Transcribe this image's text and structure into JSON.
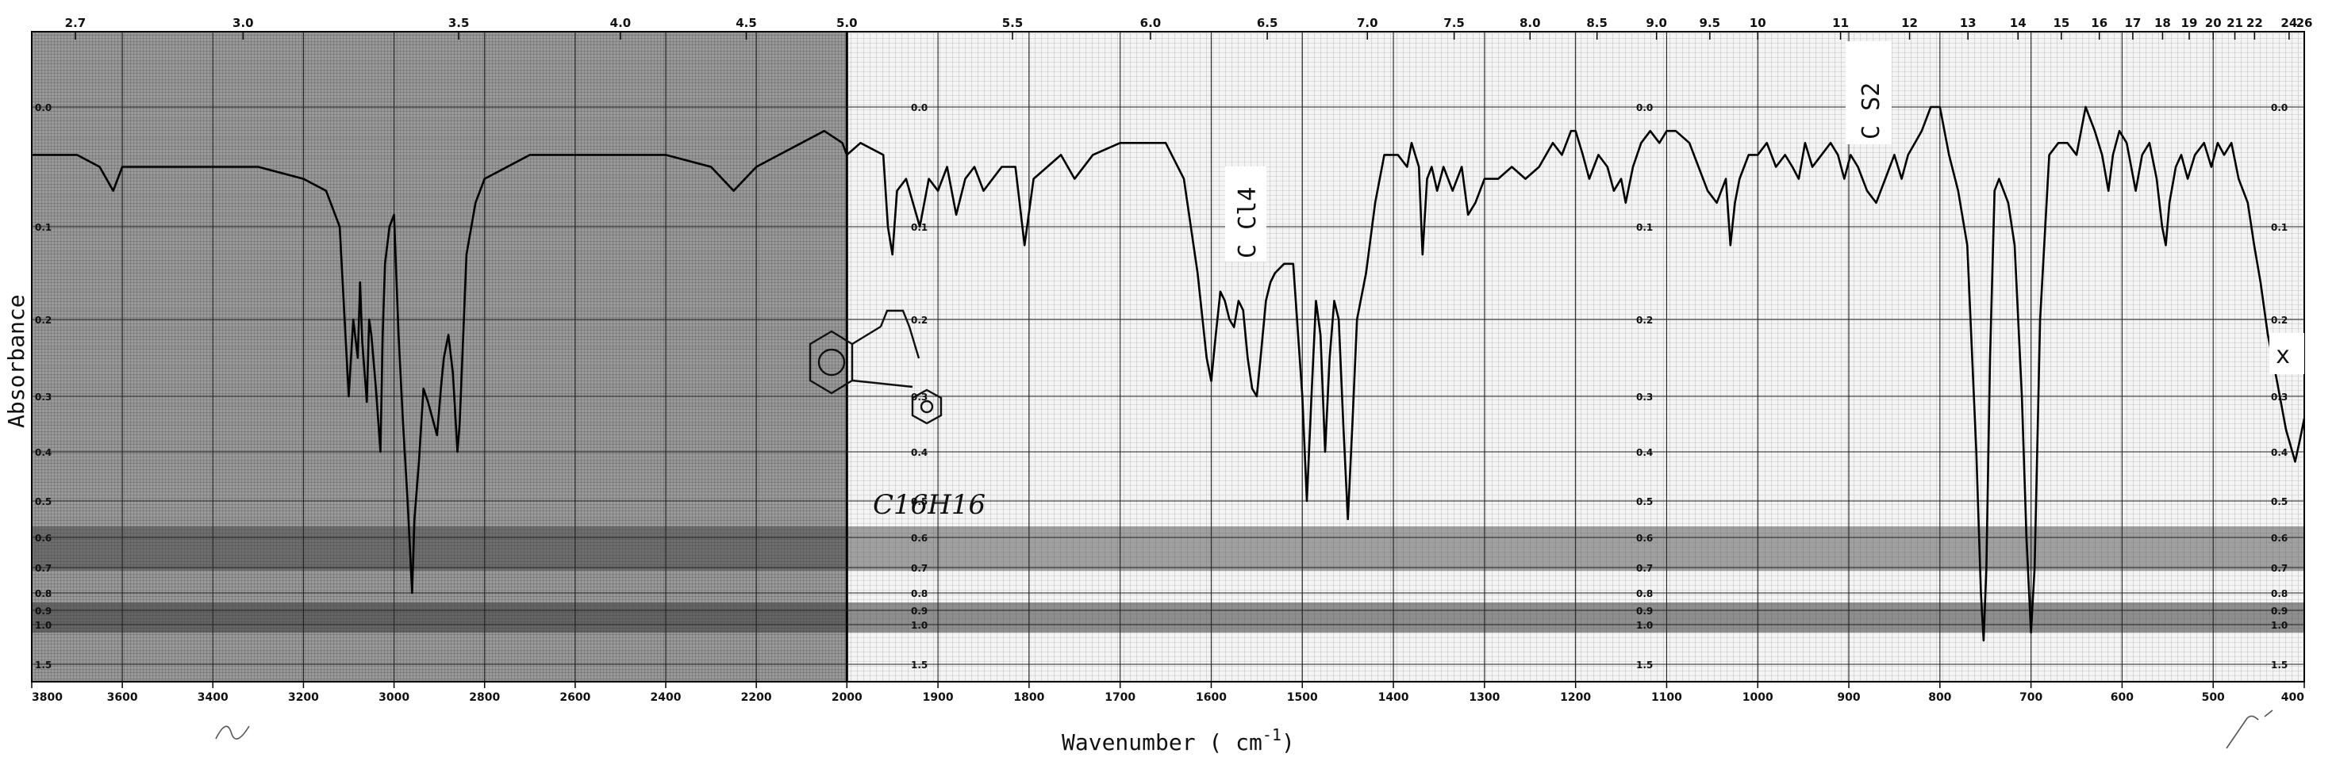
{
  "chart_data": {
    "type": "line",
    "title": "",
    "xlabel": "Wavenumber ( cm-1)",
    "xlabel_parts": {
      "main": "Wavenumber ( cm",
      "sup": "-1",
      "close": ")"
    },
    "ylabel": "Absorbance",
    "x_axis_note": "wavenumber decreases left to right; scale changes at 2000 cm-1",
    "xlim": [
      3800,
      400
    ],
    "ylim": [
      0.0,
      1.5
    ],
    "grid": true,
    "bottom_ticks": [
      "3800",
      "3600",
      "3400",
      "3200",
      "3000",
      "2800",
      "2600",
      "2400",
      "2200",
      "2000",
      "1900",
      "1800",
      "1700",
      "1600",
      "1500",
      "1400",
      "1300",
      "1200",
      "1100",
      "1000",
      "900",
      "800",
      "700",
      "600",
      "500",
      "400"
    ],
    "top_ticks_micron": [
      "2.7",
      "3.0",
      "3.5",
      "4.0",
      "4.5",
      "5.0",
      "5.5",
      "6.0",
      "6.5",
      "7.0",
      "7.5",
      "8.0",
      "8.5",
      "9.0",
      "9.5",
      "10",
      "11",
      "12",
      "13",
      "14",
      "15",
      "16",
      "17",
      "18",
      "19",
      "20",
      "21",
      "22",
      "24",
      "26"
    ],
    "absorbance_ticks": [
      "0.0",
      "0.1",
      "0.2",
      "0.3",
      "0.4",
      "0.5",
      "0.6",
      "0.7",
      "0.8",
      "0.9",
      "1.0",
      "1.5"
    ],
    "annotations": {
      "ccl4": "C Cl4",
      "cs2": "C S2",
      "formula": "C16H16",
      "marker": "x"
    },
    "series": [
      {
        "points": [
          [
            3800,
            0.04
          ],
          [
            3700,
            0.04
          ],
          [
            3650,
            0.05
          ],
          [
            3620,
            0.07
          ],
          [
            3600,
            0.05
          ],
          [
            3500,
            0.05
          ],
          [
            3300,
            0.05
          ],
          [
            3200,
            0.06
          ],
          [
            3150,
            0.07
          ],
          [
            3120,
            0.1
          ],
          [
            3100,
            0.3
          ],
          [
            3090,
            0.2
          ],
          [
            3080,
            0.25
          ],
          [
            3075,
            0.16
          ],
          [
            3070,
            0.23
          ],
          [
            3060,
            0.31
          ],
          [
            3055,
            0.2
          ],
          [
            3050,
            0.22
          ],
          [
            3040,
            0.29
          ],
          [
            3030,
            0.4
          ],
          [
            3025,
            0.22
          ],
          [
            3020,
            0.14
          ],
          [
            3010,
            0.1
          ],
          [
            3000,
            0.09
          ],
          [
            2990,
            0.22
          ],
          [
            2980,
            0.35
          ],
          [
            2970,
            0.5
          ],
          [
            2960,
            0.8
          ],
          [
            2955,
            0.55
          ],
          [
            2945,
            0.42
          ],
          [
            2935,
            0.29
          ],
          [
            2925,
            0.31
          ],
          [
            2915,
            0.34
          ],
          [
            2905,
            0.37
          ],
          [
            2895,
            0.28
          ],
          [
            2890,
            0.25
          ],
          [
            2880,
            0.22
          ],
          [
            2870,
            0.27
          ],
          [
            2860,
            0.4
          ],
          [
            2855,
            0.35
          ],
          [
            2840,
            0.13
          ],
          [
            2820,
            0.08
          ],
          [
            2800,
            0.06
          ],
          [
            2700,
            0.04
          ],
          [
            2600,
            0.04
          ],
          [
            2500,
            0.04
          ],
          [
            2400,
            0.04
          ],
          [
            2300,
            0.05
          ],
          [
            2250,
            0.07
          ],
          [
            2200,
            0.05
          ],
          [
            2150,
            0.04
          ],
          [
            2100,
            0.03
          ],
          [
            2050,
            0.02
          ],
          [
            2010,
            0.03
          ],
          [
            2000,
            0.04
          ],
          [
            1985,
            0.03
          ],
          [
            1960,
            0.04
          ],
          [
            1955,
            0.1
          ],
          [
            1950,
            0.13
          ],
          [
            1945,
            0.07
          ],
          [
            1935,
            0.06
          ],
          [
            1920,
            0.1
          ],
          [
            1910,
            0.06
          ],
          [
            1900,
            0.07
          ],
          [
            1890,
            0.05
          ],
          [
            1880,
            0.09
          ],
          [
            1870,
            0.06
          ],
          [
            1860,
            0.05
          ],
          [
            1850,
            0.07
          ],
          [
            1830,
            0.05
          ],
          [
            1815,
            0.05
          ],
          [
            1805,
            0.12
          ],
          [
            1795,
            0.06
          ],
          [
            1780,
            0.05
          ],
          [
            1765,
            0.04
          ],
          [
            1750,
            0.06
          ],
          [
            1730,
            0.04
          ],
          [
            1700,
            0.03
          ],
          [
            1650,
            0.03
          ],
          [
            1630,
            0.06
          ],
          [
            1615,
            0.15
          ],
          [
            1605,
            0.25
          ],
          [
            1600,
            0.28
          ],
          [
            1595,
            0.22
          ],
          [
            1590,
            0.17
          ],
          [
            1585,
            0.18
          ],
          [
            1580,
            0.2
          ],
          [
            1575,
            0.21
          ],
          [
            1570,
            0.18
          ],
          [
            1565,
            0.19
          ],
          [
            1560,
            0.25
          ],
          [
            1555,
            0.29
          ],
          [
            1550,
            0.3
          ],
          [
            1545,
            0.24
          ],
          [
            1540,
            0.18
          ],
          [
            1535,
            0.16
          ],
          [
            1530,
            0.15
          ],
          [
            1520,
            0.14
          ],
          [
            1510,
            0.14
          ],
          [
            1500,
            0.3
          ],
          [
            1495,
            0.5
          ],
          [
            1490,
            0.3
          ],
          [
            1485,
            0.18
          ],
          [
            1480,
            0.22
          ],
          [
            1475,
            0.4
          ],
          [
            1470,
            0.25
          ],
          [
            1465,
            0.18
          ],
          [
            1460,
            0.2
          ],
          [
            1455,
            0.35
          ],
          [
            1450,
            0.55
          ],
          [
            1445,
            0.35
          ],
          [
            1440,
            0.2
          ],
          [
            1430,
            0.15
          ],
          [
            1420,
            0.08
          ],
          [
            1410,
            0.04
          ],
          [
            1395,
            0.04
          ],
          [
            1385,
            0.05
          ],
          [
            1380,
            0.03
          ],
          [
            1372,
            0.05
          ],
          [
            1368,
            0.13
          ],
          [
            1363,
            0.06
          ],
          [
            1358,
            0.05
          ],
          [
            1352,
            0.07
          ],
          [
            1345,
            0.05
          ],
          [
            1335,
            0.07
          ],
          [
            1325,
            0.05
          ],
          [
            1318,
            0.09
          ],
          [
            1310,
            0.08
          ],
          [
            1300,
            0.06
          ],
          [
            1285,
            0.06
          ],
          [
            1270,
            0.05
          ],
          [
            1255,
            0.06
          ],
          [
            1240,
            0.05
          ],
          [
            1225,
            0.03
          ],
          [
            1215,
            0.04
          ],
          [
            1205,
            0.02
          ],
          [
            1200,
            0.02
          ],
          [
            1192,
            0.04
          ],
          [
            1185,
            0.06
          ],
          [
            1175,
            0.04
          ],
          [
            1165,
            0.05
          ],
          [
            1158,
            0.07
          ],
          [
            1150,
            0.06
          ],
          [
            1145,
            0.08
          ],
          [
            1137,
            0.05
          ],
          [
            1128,
            0.03
          ],
          [
            1118,
            0.02
          ],
          [
            1108,
            0.03
          ],
          [
            1100,
            0.02
          ],
          [
            1090,
            0.02
          ],
          [
            1075,
            0.03
          ],
          [
            1065,
            0.05
          ],
          [
            1055,
            0.07
          ],
          [
            1045,
            0.08
          ],
          [
            1035,
            0.06
          ],
          [
            1030,
            0.12
          ],
          [
            1025,
            0.08
          ],
          [
            1020,
            0.06
          ],
          [
            1010,
            0.04
          ],
          [
            1000,
            0.04
          ],
          [
            990,
            0.03
          ],
          [
            980,
            0.05
          ],
          [
            970,
            0.04
          ],
          [
            962,
            0.05
          ],
          [
            955,
            0.06
          ],
          [
            948,
            0.03
          ],
          [
            940,
            0.05
          ],
          [
            930,
            0.04
          ],
          [
            920,
            0.03
          ],
          [
            912,
            0.04
          ],
          [
            905,
            0.06
          ],
          [
            898,
            0.04
          ],
          [
            890,
            0.05
          ],
          [
            880,
            0.07
          ],
          [
            870,
            0.08
          ],
          [
            860,
            0.06
          ],
          [
            850,
            0.04
          ],
          [
            842,
            0.06
          ],
          [
            835,
            0.04
          ],
          [
            820,
            0.02
          ],
          [
            810,
            0.0
          ],
          [
            800,
            0.0
          ],
          [
            790,
            0.04
          ],
          [
            780,
            0.07
          ],
          [
            770,
            0.12
          ],
          [
            760,
            0.4
          ],
          [
            755,
            0.8
          ],
          [
            752,
            1.2
          ],
          [
            749,
            0.7
          ],
          [
            745,
            0.25
          ],
          [
            740,
            0.07
          ],
          [
            735,
            0.06
          ],
          [
            725,
            0.08
          ],
          [
            718,
            0.12
          ],
          [
            710,
            0.3
          ],
          [
            705,
            0.6
          ],
          [
            700,
            1.1
          ],
          [
            696,
            0.7
          ],
          [
            690,
            0.2
          ],
          [
            680,
            0.04
          ],
          [
            670,
            0.03
          ],
          [
            660,
            0.03
          ],
          [
            650,
            0.04
          ],
          [
            640,
            0.0
          ],
          [
            630,
            0.02
          ],
          [
            622,
            0.04
          ],
          [
            615,
            0.07
          ],
          [
            610,
            0.04
          ],
          [
            603,
            0.02
          ],
          [
            595,
            0.03
          ],
          [
            585,
            0.07
          ],
          [
            578,
            0.04
          ],
          [
            570,
            0.03
          ],
          [
            562,
            0.06
          ],
          [
            556,
            0.1
          ],
          [
            552,
            0.12
          ],
          [
            548,
            0.08
          ],
          [
            541,
            0.05
          ],
          [
            535,
            0.04
          ],
          [
            528,
            0.06
          ],
          [
            520,
            0.04
          ],
          [
            510,
            0.03
          ],
          [
            502,
            0.05
          ],
          [
            495,
            0.03
          ],
          [
            488,
            0.04
          ],
          [
            480,
            0.03
          ],
          [
            472,
            0.06
          ],
          [
            462,
            0.08
          ],
          [
            455,
            0.12
          ],
          [
            448,
            0.16
          ],
          [
            440,
            0.22
          ],
          [
            430,
            0.28
          ],
          [
            420,
            0.36
          ],
          [
            410,
            0.42
          ],
          [
            405,
            0.38
          ],
          [
            400,
            0.34
          ]
        ]
      }
    ]
  }
}
